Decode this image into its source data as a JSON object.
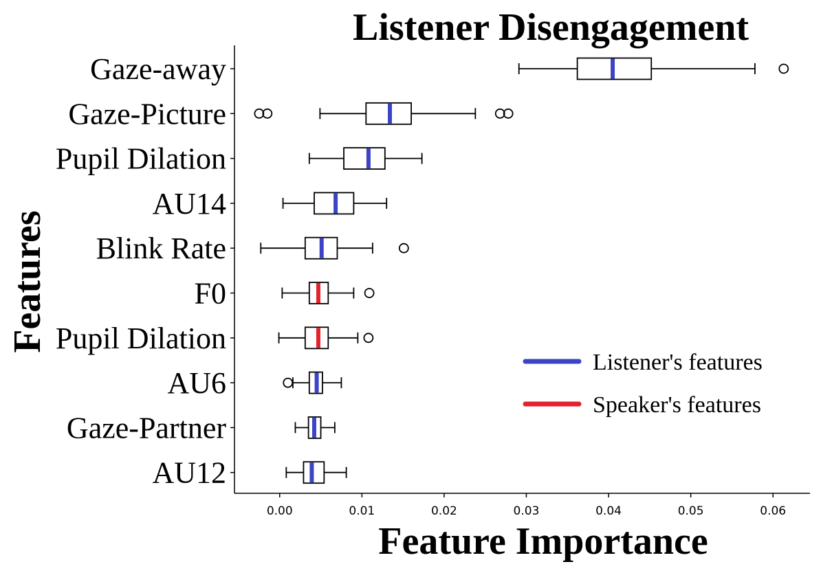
{
  "chart_data": {
    "type": "boxplot",
    "orientation": "horizontal",
    "title": "Listener Disengagement",
    "xlabel": "Feature Importance",
    "ylabel": "Features",
    "xlim": [
      -0.0055,
      0.0645
    ],
    "x_ticks": [
      "0.00",
      "0.01",
      "0.02",
      "0.03",
      "0.04",
      "0.05",
      "0.06"
    ],
    "grid": false,
    "legend_position": "bottom-right",
    "legend": [
      {
        "label": "Listener's features",
        "color": "#3b44c6"
      },
      {
        "label": "Speaker's features",
        "color": "#e4222b"
      }
    ],
    "categories": [
      "Gaze-away",
      "Gaze-Picture",
      "Pupil Dilation",
      "AU14",
      "Blink Rate",
      "F0",
      "Pupil Dilation",
      "AU6",
      "Gaze-Partner",
      "AU12"
    ],
    "boxes": [
      {
        "label": "Gaze-away",
        "group": "listener",
        "whisker_low": 0.0291,
        "q1": 0.0362,
        "median": 0.0405,
        "q3": 0.0452,
        "whisker_high": 0.0578,
        "outliers": [
          0.0613
        ]
      },
      {
        "label": "Gaze-Picture",
        "group": "listener",
        "whisker_low": 0.0049,
        "q1": 0.0105,
        "median": 0.0134,
        "q3": 0.016,
        "whisker_high": 0.0238,
        "outliers": [
          -0.0025,
          -0.0015,
          0.0268,
          0.0278
        ]
      },
      {
        "label": "Pupil Dilation",
        "group": "listener",
        "whisker_low": 0.0036,
        "q1": 0.0078,
        "median": 0.0108,
        "q3": 0.0128,
        "whisker_high": 0.0173,
        "outliers": []
      },
      {
        "label": "AU14",
        "group": "listener",
        "whisker_low": 0.0004,
        "q1": 0.0042,
        "median": 0.0068,
        "q3": 0.009,
        "whisker_high": 0.013,
        "outliers": []
      },
      {
        "label": "Blink Rate",
        "group": "listener",
        "whisker_low": -0.0023,
        "q1": 0.0031,
        "median": 0.0051,
        "q3": 0.007,
        "whisker_high": 0.0113,
        "outliers": [
          0.0151
        ]
      },
      {
        "label": "F0",
        "group": "speaker",
        "whisker_low": 0.0003,
        "q1": 0.0036,
        "median": 0.0047,
        "q3": 0.0059,
        "whisker_high": 0.009,
        "outliers": [
          0.0109
        ]
      },
      {
        "label": "Pupil Dilation",
        "group": "speaker",
        "whisker_low": -0.0001,
        "q1": 0.0031,
        "median": 0.0047,
        "q3": 0.0059,
        "whisker_high": 0.0095,
        "outliers": [
          0.0108
        ]
      },
      {
        "label": "AU6",
        "group": "listener",
        "whisker_low": 0.0016,
        "q1": 0.0036,
        "median": 0.0045,
        "q3": 0.0052,
        "whisker_high": 0.0075,
        "outliers": [
          0.001
        ]
      },
      {
        "label": "Gaze-Partner",
        "group": "listener",
        "whisker_low": 0.0019,
        "q1": 0.0035,
        "median": 0.0042,
        "q3": 0.005,
        "whisker_high": 0.0067,
        "outliers": []
      },
      {
        "label": "AU12",
        "group": "listener",
        "whisker_low": 0.0008,
        "q1": 0.0029,
        "median": 0.0039,
        "q3": 0.0054,
        "whisker_high": 0.0081,
        "outliers": []
      }
    ],
    "colors": {
      "listener": "#3b44c6",
      "speaker": "#e4222b",
      "box_stroke": "#000000"
    }
  }
}
